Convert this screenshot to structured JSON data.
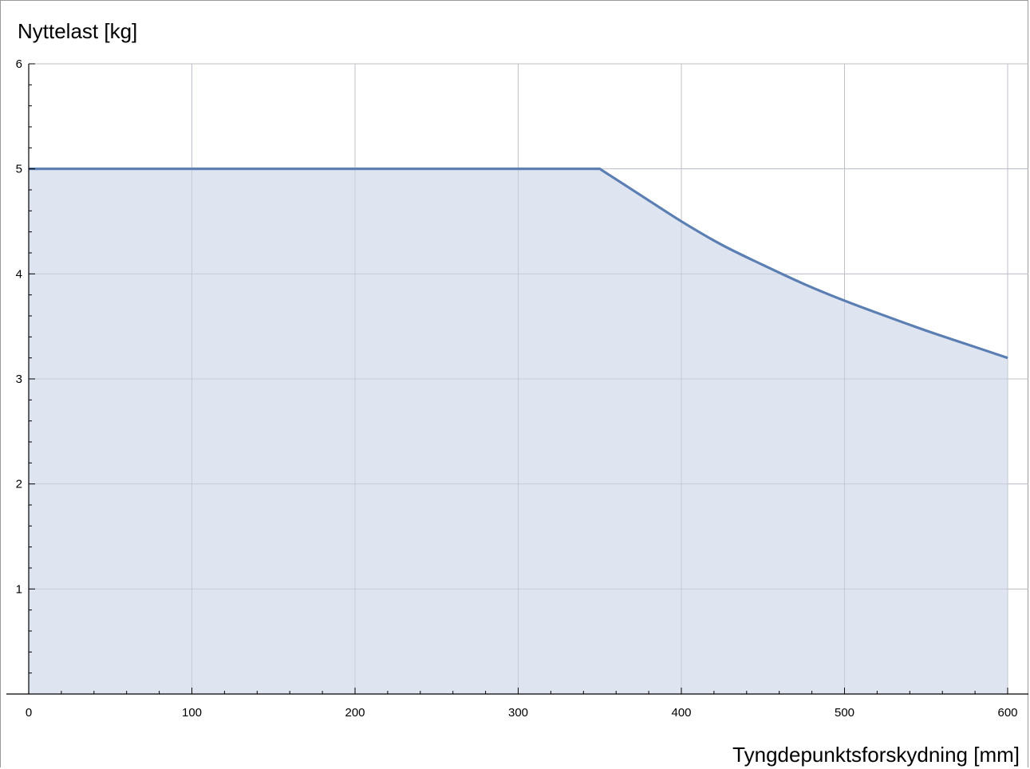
{
  "chart_data": {
    "type": "area",
    "title": "",
    "xlabel": "Tyngdepunktsforskydning [mm]",
    "ylabel": "Nyttelast [kg]",
    "xlim": [
      0,
      600
    ],
    "ylim": [
      0,
      6
    ],
    "x_ticks": [
      0,
      100,
      200,
      300,
      400,
      500,
      600
    ],
    "y_ticks": [
      1,
      2,
      3,
      4,
      5,
      6
    ],
    "x_tick_labels": [
      "0",
      "100",
      "200",
      "300",
      "400",
      "500",
      "600"
    ],
    "y_tick_labels": [
      "1",
      "2",
      "3",
      "4",
      "5",
      "6"
    ],
    "grid": true,
    "legend": "none",
    "series": [
      {
        "x": [
          0,
          350,
          375,
          400,
          425,
          450,
          475,
          500,
          525,
          550,
          575,
          600
        ],
        "values": [
          5,
          5,
          4.75,
          4.5,
          4.275,
          4.085,
          3.905,
          3.745,
          3.6,
          3.46,
          3.33,
          3.2
        ]
      }
    ],
    "colors": {
      "line": "#5b7fb3",
      "fill": "#dde3f0",
      "grid": "#c8c8cc",
      "axis": "#000000"
    }
  }
}
